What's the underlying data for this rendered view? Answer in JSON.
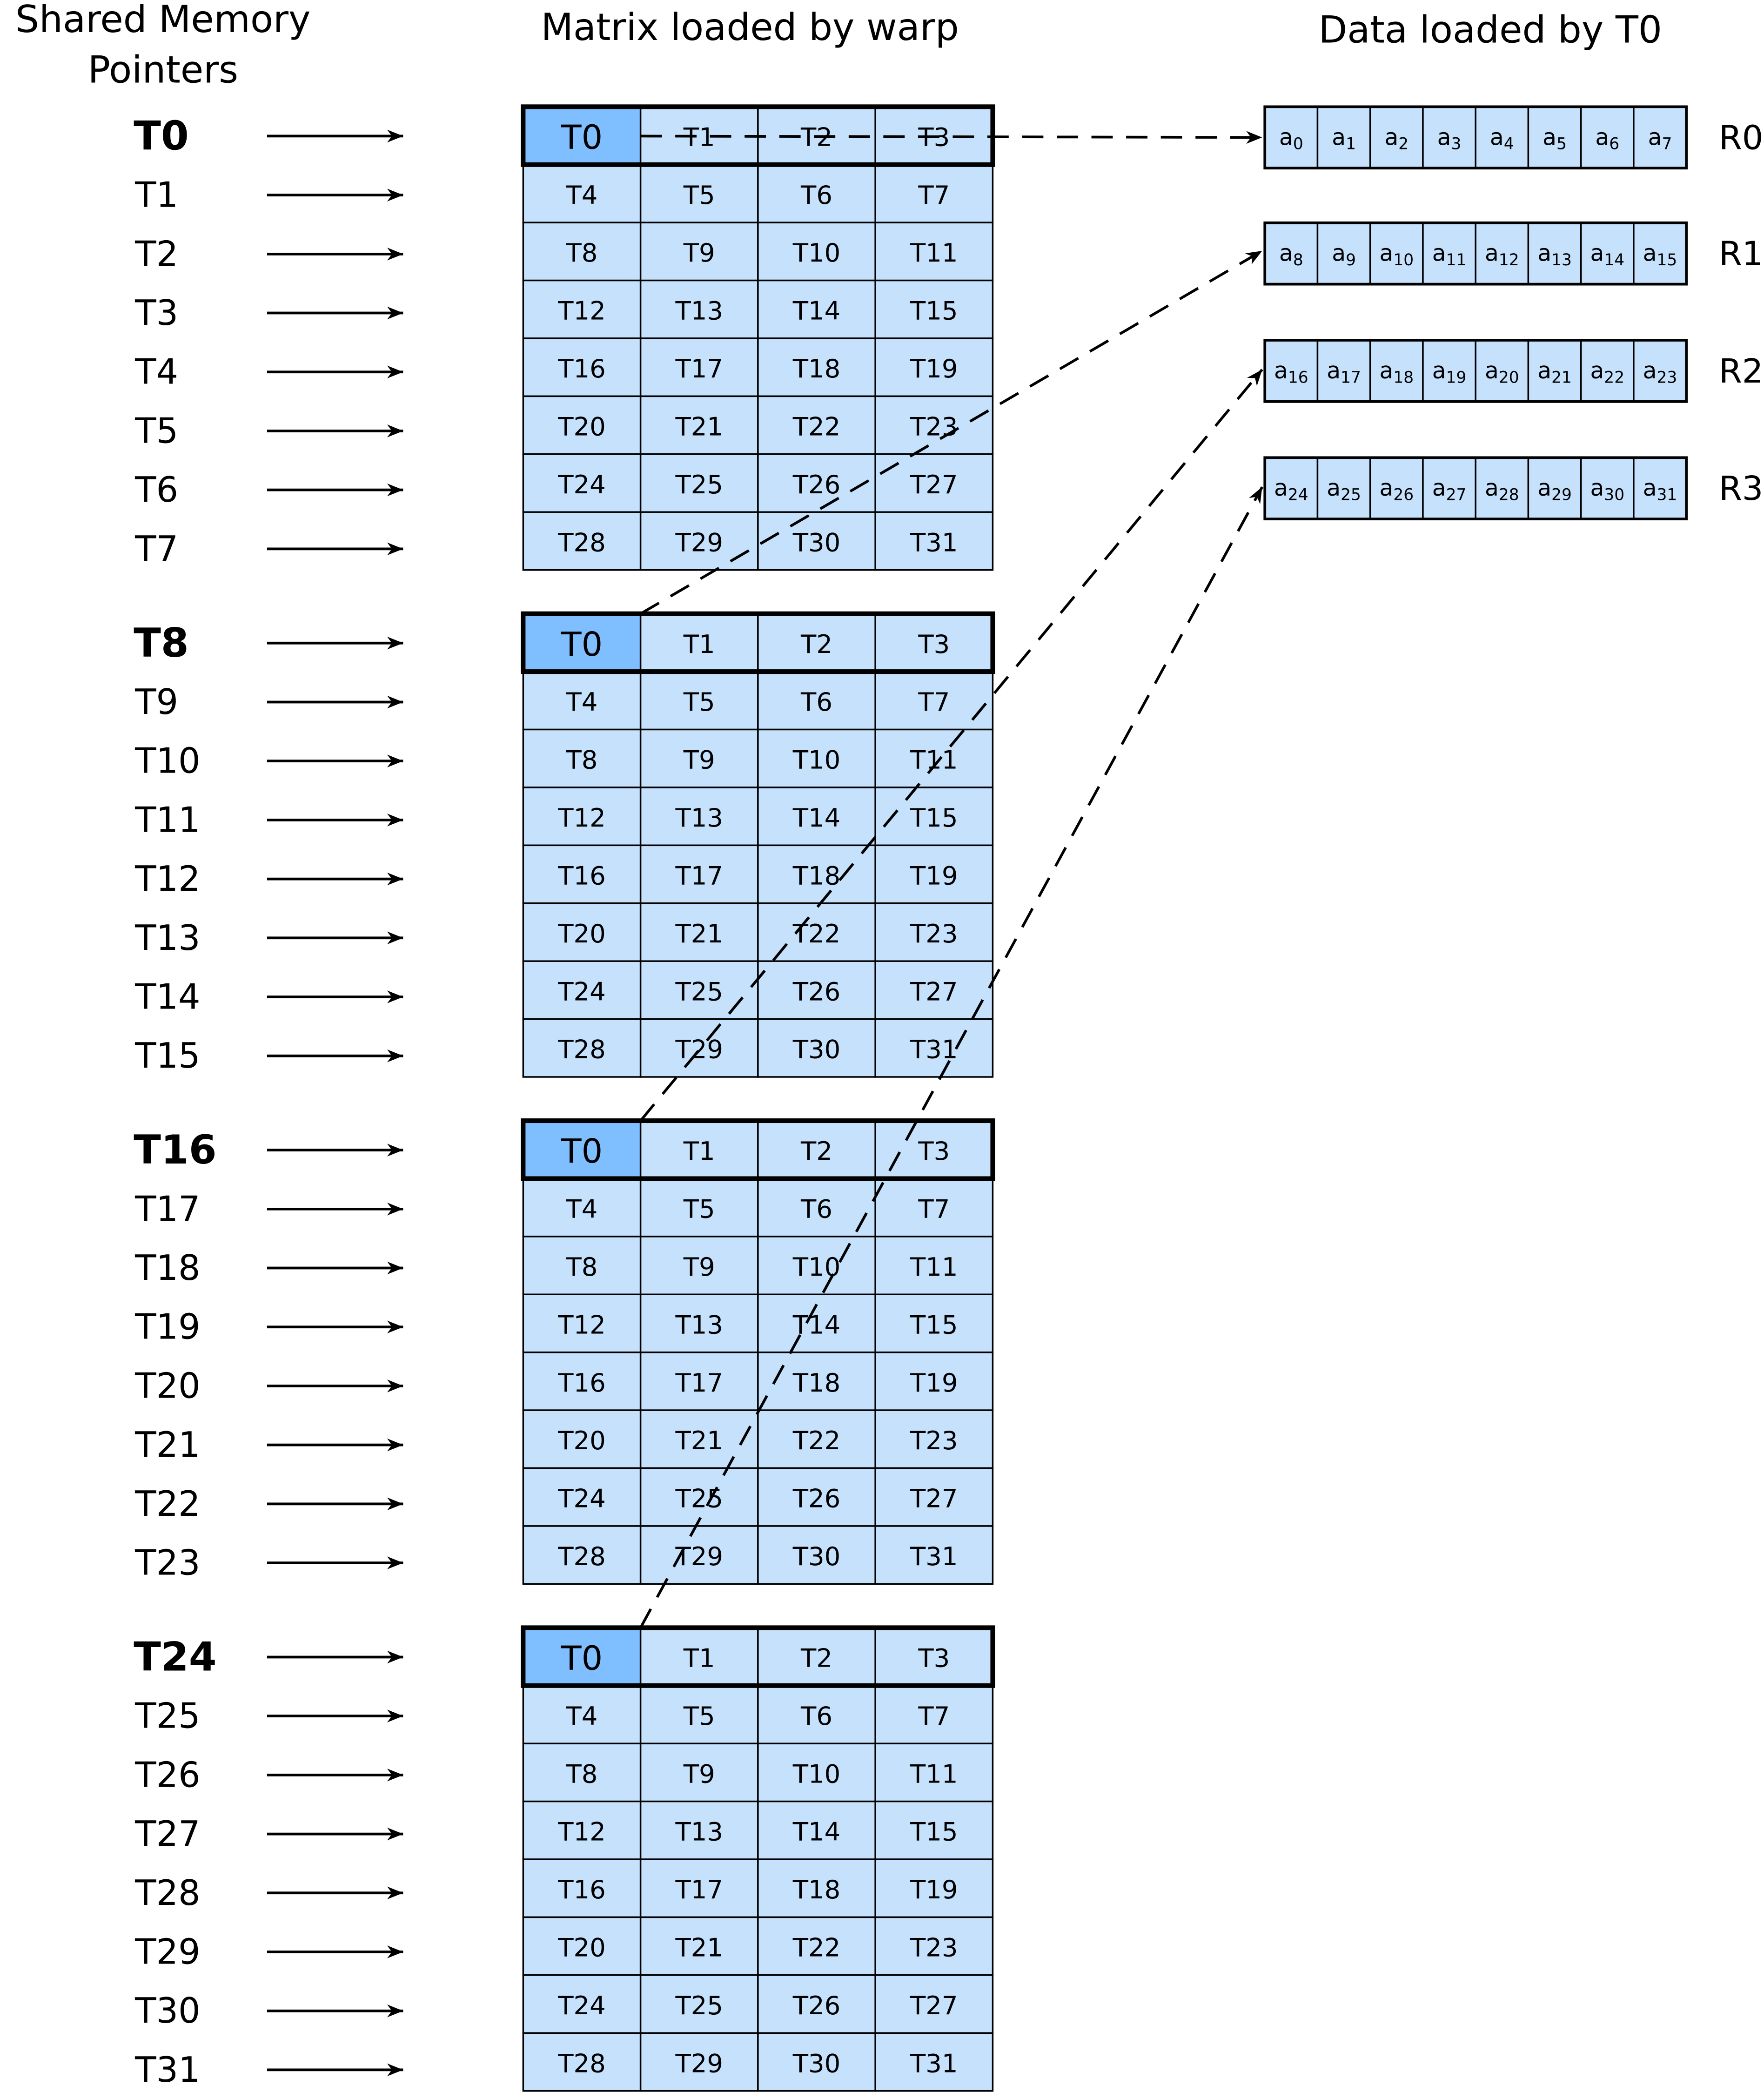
{
  "titles": {
    "pointers_line1": "Shared Memory",
    "pointers_line2": "Pointers",
    "matrix": "Matrix loaded by warp",
    "data": "Data loaded by T0"
  },
  "pointer_groups": [
    [
      "T0",
      "T1",
      "T2",
      "T3",
      "T4",
      "T5",
      "T6",
      "T7"
    ],
    [
      "T8",
      "T9",
      "T10",
      "T11",
      "T12",
      "T13",
      "T14",
      "T15"
    ],
    [
      "T16",
      "T17",
      "T18",
      "T19",
      "T20",
      "T21",
      "T22",
      "T23"
    ],
    [
      "T24",
      "T25",
      "T26",
      "T27",
      "T28",
      "T29",
      "T30",
      "T31"
    ]
  ],
  "matrix_cells": [
    "T0",
    "T1",
    "T2",
    "T3",
    "T4",
    "T5",
    "T6",
    "T7",
    "T8",
    "T9",
    "T10",
    "T11",
    "T12",
    "T13",
    "T14",
    "T15",
    "T16",
    "T17",
    "T18",
    "T19",
    "T20",
    "T21",
    "T22",
    "T23",
    "T24",
    "T25",
    "T26",
    "T27",
    "T28",
    "T29",
    "T30",
    "T31"
  ],
  "matrix_block_count": 4,
  "registers": [
    {
      "name": "R0",
      "base": "a",
      "indices": [
        "0",
        "1",
        "2",
        "3",
        "4",
        "5",
        "6",
        "7"
      ]
    },
    {
      "name": "R1",
      "base": "a",
      "indices": [
        "8",
        "9",
        "10",
        "11",
        "12",
        "13",
        "14",
        "15"
      ]
    },
    {
      "name": "R2",
      "base": "a",
      "indices": [
        "16",
        "17",
        "18",
        "19",
        "20",
        "21",
        "22",
        "23"
      ]
    },
    {
      "name": "R3",
      "base": "a",
      "indices": [
        "24",
        "25",
        "26",
        "27",
        "28",
        "29",
        "30",
        "31"
      ]
    }
  ],
  "colors": {
    "cell": "#c5e1fc",
    "highlight": "#80bfff",
    "line": "#000000"
  }
}
